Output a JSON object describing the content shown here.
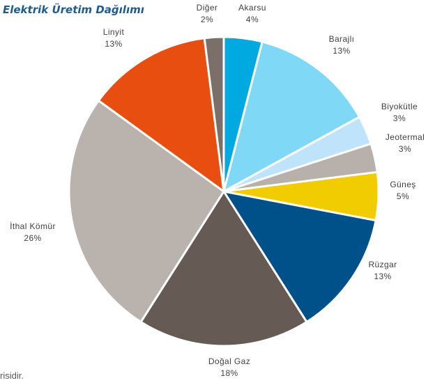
{
  "chart_data": {
    "type": "pie",
    "title": "Elektrik Üretim Dağılımı",
    "start_angle_deg": 0,
    "direction": "clockwise",
    "legend": "none",
    "slices": [
      {
        "label": "Akarsu",
        "value": 4,
        "pct_label": "4%",
        "color": "#00a9e0"
      },
      {
        "label": "Barajlı",
        "value": 13,
        "pct_label": "13%",
        "color": "#7fd8f5"
      },
      {
        "label": "Biyokütle",
        "value": 3,
        "pct_label": "3%",
        "color": "#bfe3fb"
      },
      {
        "label": "Jeotermal",
        "value": 3,
        "pct_label": "3%",
        "color": "#b8b1ab"
      },
      {
        "label": "Güneş",
        "value": 5,
        "pct_label": "5%",
        "color": "#f0cc00"
      },
      {
        "label": "Rüzgar",
        "value": 13,
        "pct_label": "13%",
        "color": "#00508a"
      },
      {
        "label": "Doğal Gaz",
        "value": 18,
        "pct_label": "18%",
        "color": "#655a54"
      },
      {
        "label": "İthal Kömür",
        "value": 26,
        "pct_label": "26%",
        "color": "#bab3ad"
      },
      {
        "label": "Linyit",
        "value": 13,
        "pct_label": "13%",
        "color": "#e84e10"
      },
      {
        "label": "Diğer",
        "value": 2,
        "pct_label": "2%",
        "color": "#7a6f69"
      }
    ]
  },
  "footnote": "risidir."
}
